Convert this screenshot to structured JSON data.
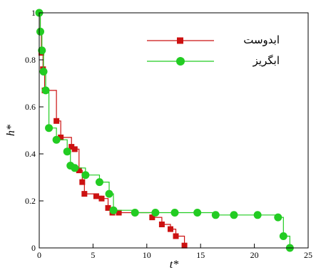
{
  "chart_data": {
    "type": "line",
    "xlabel": "t*",
    "ylabel": "h*",
    "xlim": [
      0,
      25
    ],
    "ylim": [
      0,
      1
    ],
    "x_ticks": [
      "0",
      "5",
      "10",
      "15",
      "20",
      "25"
    ],
    "y_ticks": [
      "0",
      "0.2",
      "0.4",
      "0.6",
      "0.8",
      "1"
    ],
    "grid": false,
    "legend_position": "top-right",
    "series": [
      {
        "name": "ابدوست",
        "color": "#cc1111",
        "marker": "square",
        "x": [
          0,
          0.1,
          0.2,
          0.35,
          0.5,
          1.6,
          2.0,
          3.0,
          3.3,
          3.7,
          4.0,
          4.2,
          5.3,
          5.8,
          6.4,
          6.8,
          7.4,
          8.9,
          10.5,
          11.4,
          12.2,
          12.7,
          13.5
        ],
        "values": [
          1.0,
          0.92,
          0.83,
          0.76,
          0.67,
          0.54,
          0.47,
          0.43,
          0.42,
          0.33,
          0.28,
          0.23,
          0.22,
          0.21,
          0.17,
          0.15,
          0.15,
          0.15,
          0.13,
          0.1,
          0.08,
          0.05,
          0.01
        ]
      },
      {
        "name": "ابگریز",
        "color": "#22cc22",
        "marker": "circle",
        "x": [
          0,
          0.1,
          0.25,
          0.4,
          0.6,
          0.9,
          1.6,
          2.6,
          2.9,
          3.3,
          4.3,
          5.6,
          6.5,
          6.9,
          8.9,
          10.8,
          12.6,
          14.7,
          16.4,
          18.1,
          20.3,
          22.2,
          22.7,
          23.3
        ],
        "values": [
          1.0,
          0.92,
          0.84,
          0.75,
          0.67,
          0.51,
          0.46,
          0.41,
          0.35,
          0.34,
          0.31,
          0.28,
          0.23,
          0.16,
          0.15,
          0.15,
          0.15,
          0.15,
          0.14,
          0.14,
          0.14,
          0.13,
          0.05,
          0.0
        ]
      }
    ]
  }
}
